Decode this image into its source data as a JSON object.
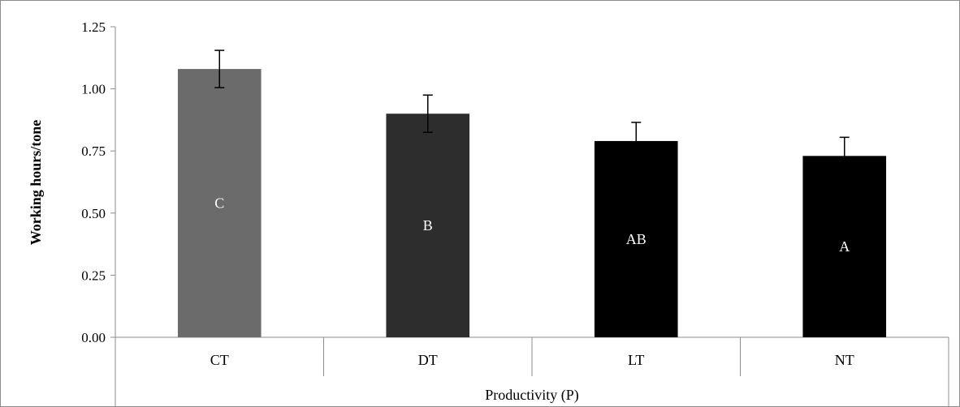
{
  "chart_data": {
    "type": "bar",
    "title": "",
    "xlabel": "Productivity (P)",
    "ylabel": "Working hours/tone",
    "ylim": [
      0,
      1.25
    ],
    "yticks": [
      "0.00",
      "0.25",
      "0.50",
      "0.75",
      "1.00",
      "1.25"
    ],
    "categories": [
      "CT",
      "DT",
      "LT",
      "NT"
    ],
    "values": [
      1.08,
      0.9,
      0.79,
      0.73
    ],
    "errors": [
      0.075,
      0.075,
      0.075,
      0.075
    ],
    "bar_labels": [
      "C",
      "B",
      "AB",
      "A"
    ],
    "bar_colors": [
      "#6b6b6b",
      "#2d2d2d",
      "#000000",
      "#000000"
    ],
    "grid": false,
    "legend": "none"
  }
}
